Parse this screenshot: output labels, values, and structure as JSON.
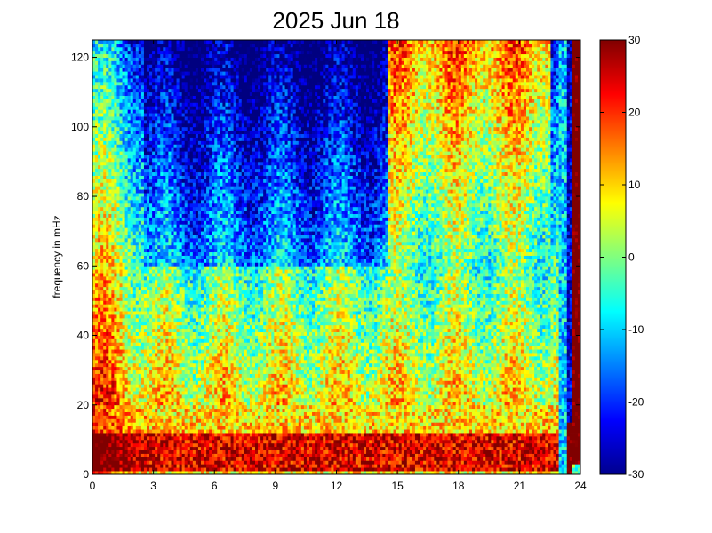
{
  "chart_data": {
    "type": "heatmap",
    "title": "2025 Jun 18",
    "xlabel": "",
    "ylabel": "frequency in mHz",
    "xlim": [
      0,
      24
    ],
    "ylim": [
      0,
      125
    ],
    "xticks": [
      "0",
      "3",
      "6",
      "9",
      "12",
      "15",
      "18",
      "21",
      "24"
    ],
    "yticks": [
      "0",
      "20",
      "40",
      "60",
      "80",
      "100",
      "120"
    ],
    "colorbar": {
      "range": [
        -30,
        30
      ],
      "ticks": [
        "30",
        "20",
        "10",
        "0",
        "-10",
        "-20",
        "-30"
      ],
      "colormap": "jet"
    },
    "grid": false
  }
}
